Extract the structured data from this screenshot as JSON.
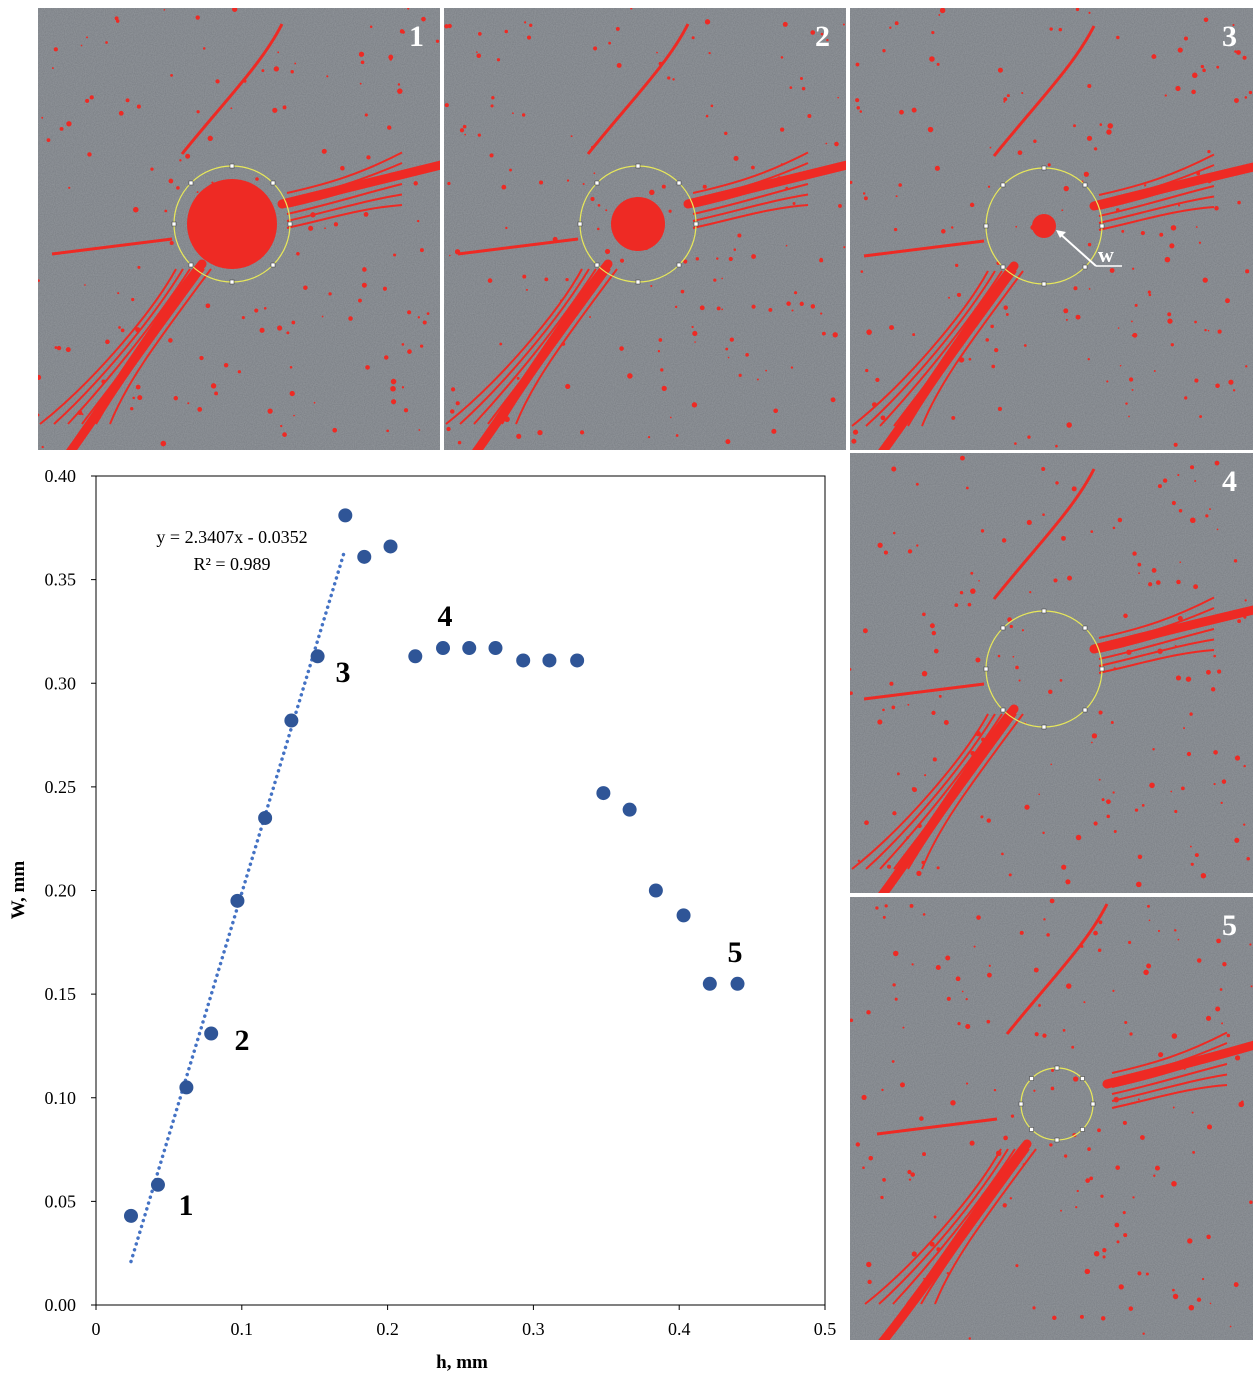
{
  "chart_data": {
    "type": "scatter",
    "x_label": "h, mm",
    "y_label": "W, mm",
    "x": [
      0.024,
      0.0425,
      0.062,
      0.079,
      0.097,
      0.116,
      0.134,
      0.152,
      0.171,
      0.184,
      0.202,
      0.219,
      0.238,
      0.256,
      0.274,
      0.293,
      0.311,
      0.33,
      0.348,
      0.366,
      0.384,
      0.403,
      0.421,
      0.44
    ],
    "values": [
      0.043,
      0.058,
      0.105,
      0.131,
      0.195,
      0.235,
      0.282,
      0.313,
      0.381,
      0.361,
      0.366,
      0.313,
      0.317,
      0.317,
      0.317,
      0.311,
      0.311,
      0.311,
      0.247,
      0.239,
      0.2,
      0.188,
      0.155,
      0.155
    ],
    "color": "#2f5597",
    "xlim": [
      0,
      0.5
    ],
    "xticks": [
      0,
      0.1,
      0.2,
      0.3,
      0.4,
      0.5
    ],
    "ylim": [
      0,
      0.4
    ],
    "yticks": [
      {
        "value": 0,
        "label": "0.00"
      },
      {
        "value": 0.05,
        "label": "0.05"
      },
      {
        "value": 0.1,
        "label": "0.10"
      },
      {
        "value": 0.15,
        "label": "0.15"
      },
      {
        "value": 0.2,
        "label": "0.20"
      },
      {
        "value": 0.25,
        "label": "0.25"
      },
      {
        "value": 0.3,
        "label": "0.30"
      },
      {
        "value": 0.35,
        "label": "0.35"
      },
      {
        "value": 0.4,
        "label": "0.40"
      }
    ],
    "trendline": {
      "slope": 2.3407,
      "intercept": -0.0352,
      "x": [
        0.024,
        0.17
      ],
      "color": "#4472c4",
      "label": "y = 2.3407x - 0.0352",
      "r_squared_label": "R² = 0.989"
    },
    "annotations": [
      "1",
      "2",
      "3",
      "4",
      "5"
    ]
  },
  "panels": [
    {
      "label": "1"
    },
    {
      "label": "2"
    },
    {
      "label": "3"
    },
    {
      "label": "4"
    },
    {
      "label": "5"
    }
  ],
  "panel_3_marker": "w"
}
